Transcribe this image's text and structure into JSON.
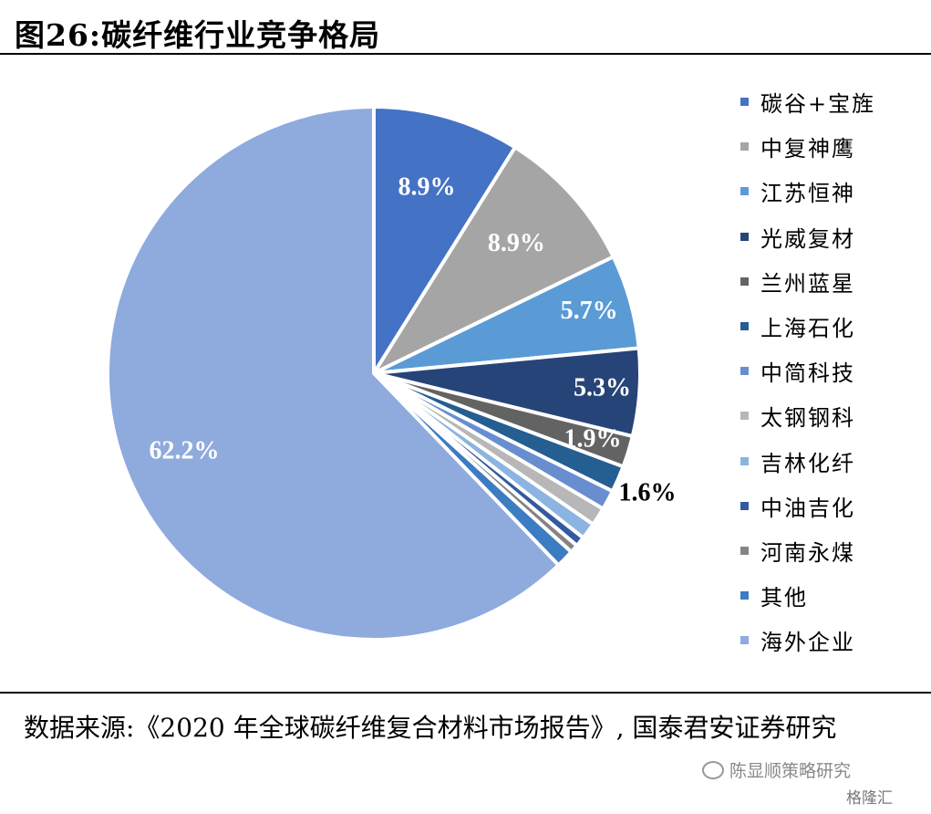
{
  "title": "图26:碳纤维行业竞争格局",
  "source_text": "数据来源:《2020 年全球碳纤维复合材料市场报告》, 国泰君安证券研究",
  "watermark": "陈显顺策略研究",
  "watermark2": "格隆汇",
  "chart_data": {
    "type": "pie",
    "start_angle_deg": 0,
    "direction": "clockwise",
    "legend_position": "right",
    "slices": [
      {
        "name": "碳谷+宝旌",
        "value": 8.9,
        "label": "8.9%",
        "color": "#4472C4",
        "label_color": "#ffffff"
      },
      {
        "name": "中复神鹰",
        "value": 8.9,
        "label": "8.9%",
        "color": "#A5A5A5",
        "label_color": "#ffffff"
      },
      {
        "name": "江苏恒神",
        "value": 5.7,
        "label": "5.7%",
        "color": "#5B9BD5",
        "label_color": "#ffffff"
      },
      {
        "name": "光威复材",
        "value": 5.3,
        "label": "5.3%",
        "color": "#264478",
        "label_color": "#ffffff"
      },
      {
        "name": "兰州蓝星",
        "value": 1.9,
        "label": "1.9%",
        "color": "#636363",
        "label_color": "#ffffff"
      },
      {
        "name": "上海石化",
        "value": 1.6,
        "label": "1.6%",
        "color": "#255E91",
        "label_color": "#000000"
      },
      {
        "name": "中简科技",
        "value": 1.2,
        "label": "",
        "color": "#698ED0",
        "label_color": "#000000"
      },
      {
        "name": "太钢钢科",
        "value": 1.1,
        "label": "",
        "color": "#B7B7B7",
        "label_color": "#000000"
      },
      {
        "name": "吉林化纤",
        "value": 1.0,
        "label": "",
        "color": "#8CB4E0",
        "label_color": "#000000"
      },
      {
        "name": "中油吉化",
        "value": 0.6,
        "label": "",
        "color": "#335AA1",
        "label_color": "#000000"
      },
      {
        "name": "河南永煤",
        "value": 0.5,
        "label": "",
        "color": "#848484",
        "label_color": "#000000"
      },
      {
        "name": "其他",
        "value": 1.1,
        "label": "",
        "color": "#3C7CC2",
        "label_color": "#000000"
      },
      {
        "name": "海外企业",
        "value": 62.2,
        "label": "62.2%",
        "color": "#8FAADC",
        "label_color": "#ffffff"
      }
    ]
  }
}
